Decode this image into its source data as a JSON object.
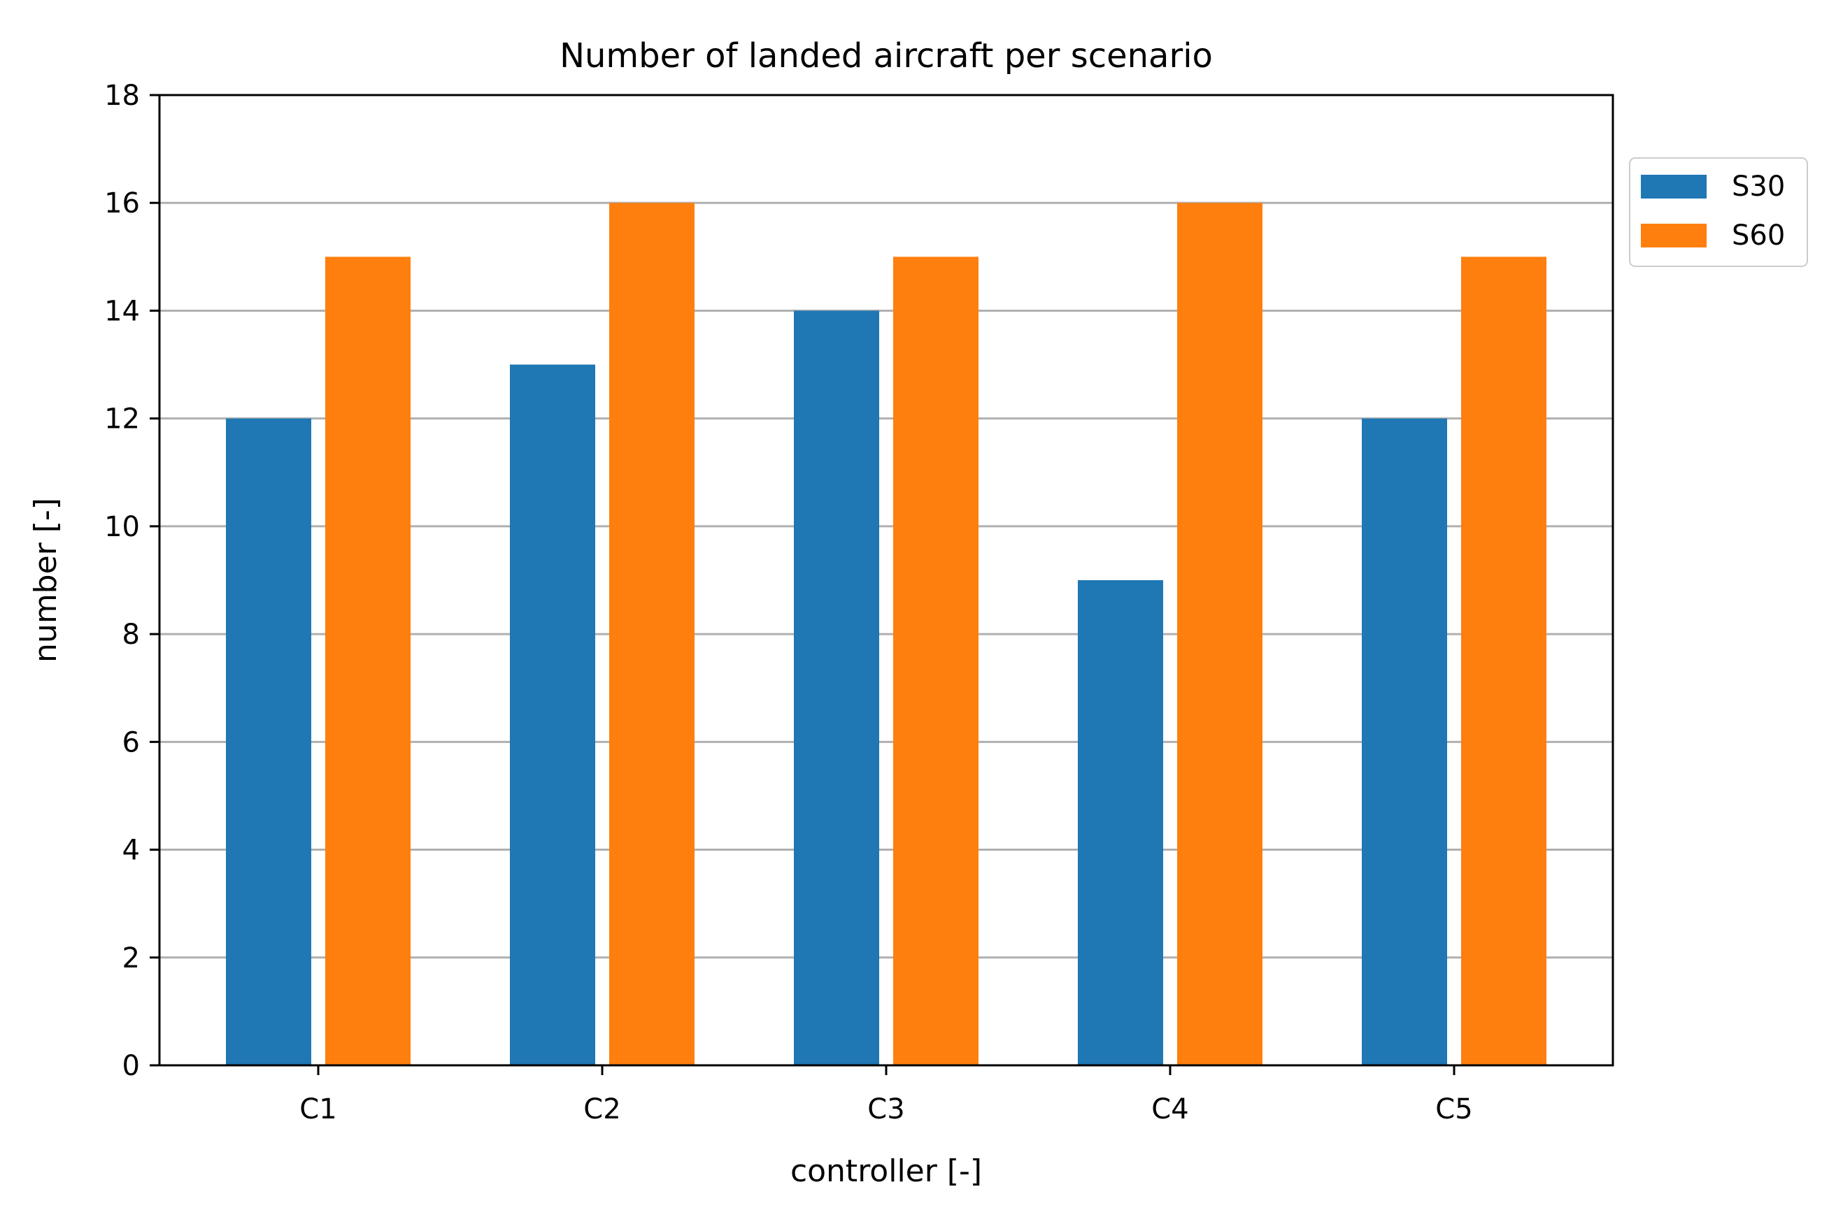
{
  "chart_data": {
    "type": "bar",
    "title": "Number of landed aircraft per scenario",
    "xlabel": "controller [-]",
    "ylabel": "number [-]",
    "categories": [
      "C1",
      "C2",
      "C3",
      "C4",
      "C5"
    ],
    "series": [
      {
        "name": "S30",
        "color": "#1f77b4",
        "values": [
          12,
          13,
          14,
          9,
          12
        ]
      },
      {
        "name": "S60",
        "color": "#ff7f0e",
        "values": [
          15,
          16,
          15,
          16,
          15
        ]
      }
    ],
    "ylim": [
      0,
      18
    ],
    "yticks": [
      0,
      2,
      4,
      6,
      8,
      10,
      12,
      14,
      16,
      18
    ],
    "grid": "horizontal",
    "legend_position": "outside-right-top"
  }
}
